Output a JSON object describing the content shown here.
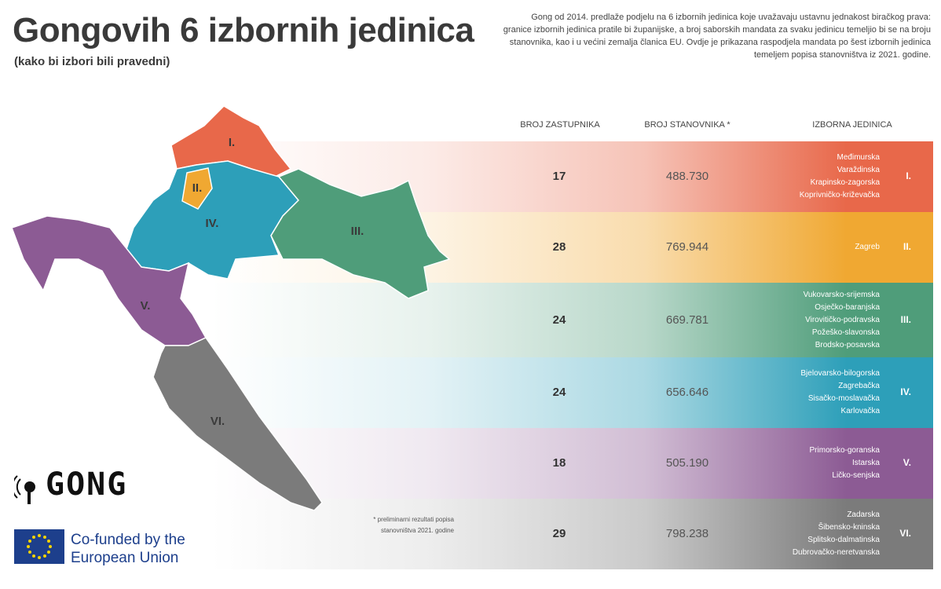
{
  "header": {
    "title": "Gongovih 6 izbornih jedinica",
    "subtitle": "(kako bi izbori bili pravedni)",
    "description": "Gong od 2014. predlaže podjelu na 6 izbornih jedinica koje uvažavaju ustavnu jednakost biračkog prava: granice izbornih jedinica pratile bi županijske, a broj saborskih mandata za svaku jedinicu temeljio bi se na broju stanovnika, kao i u većini zemalja članica EU. Ovdje je prikazana raspodjela mandata po šest izbornih jedinica temeljem popisa stanovništva iz 2021. godine."
  },
  "table": {
    "columns": [
      "BROJ ZASTUPNIKA",
      "BROJ STANOVNIKA *",
      "IZBORNA JEDINICA"
    ],
    "rows": [
      {
        "seats": "17",
        "population": "488.730",
        "counties": [
          "Međimurska",
          "Varaždinska",
          "Krapinsko-zagorska",
          "Koprivničko-križevačka"
        ],
        "unit": "I.",
        "color": "#e8684a"
      },
      {
        "seats": "28",
        "population": "769.944",
        "counties": [
          "Zagreb"
        ],
        "unit": "II.",
        "color": "#f0a832"
      },
      {
        "seats": "24",
        "population": "669.781",
        "counties": [
          "Vukovarsko-srijemska",
          "Osječko-baranjska",
          "Virovitičko-podravska",
          "Požeško-slavonska",
          "Brodsko-posavska"
        ],
        "unit": "III.",
        "color": "#4f9d7a"
      },
      {
        "seats": "24",
        "population": "656.646",
        "counties": [
          "Bjelovarsko-bilogorska",
          "Zagrebačka",
          "Sisačko-moslavačka",
          "Karlovačka"
        ],
        "unit": "IV.",
        "color": "#2d9fb9"
      },
      {
        "seats": "18",
        "population": "505.190",
        "counties": [
          "Primorsko-goranska",
          "Istarska",
          "Ličko-senjska"
        ],
        "unit": "V.",
        "color": "#8c5b94"
      },
      {
        "seats": "29",
        "population": "798.238",
        "counties": [
          "Zadarska",
          "Šibensko-kninska",
          "Splitsko-dalmatinska",
          "Dubrovačko-neretvanska"
        ],
        "unit": "VI.",
        "color": "#7b7b7b"
      }
    ]
  },
  "footnote": "* preliminarni rezultati popisa stanovništva 2021. godine",
  "logos": {
    "gong": "GONG",
    "eu": "Co-funded by the European Union"
  }
}
